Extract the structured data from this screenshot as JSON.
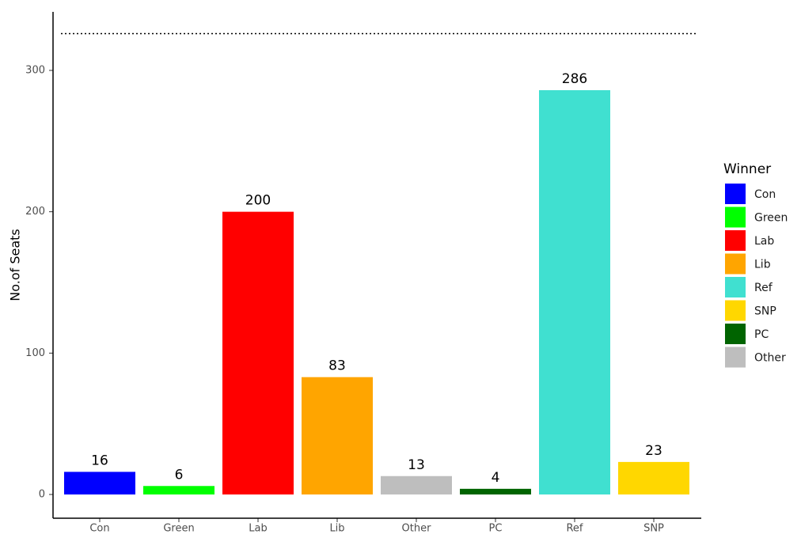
{
  "chart_data": {
    "type": "bar",
    "y_label": "No.of Seats",
    "categories": [
      "Con",
      "Green",
      "Lab",
      "Lib",
      "Other",
      "PC",
      "Ref",
      "SNP"
    ],
    "values": [
      16,
      6,
      200,
      83,
      13,
      4,
      286,
      23
    ],
    "colors": [
      "#0000ff",
      "#00ff00",
      "#ff0000",
      "#ffa500",
      "#bebebe",
      "#006400",
      "#40e0d0",
      "#ffd700"
    ],
    "ylim": [
      -16.8,
      341.4
    ],
    "yticks": [
      0,
      100,
      200,
      300
    ],
    "reference_line": 326,
    "legend": {
      "title": "Winner",
      "entries": [
        "Con",
        "Green",
        "Lab",
        "Lib",
        "Ref",
        "SNP",
        "PC",
        "Other"
      ]
    }
  }
}
